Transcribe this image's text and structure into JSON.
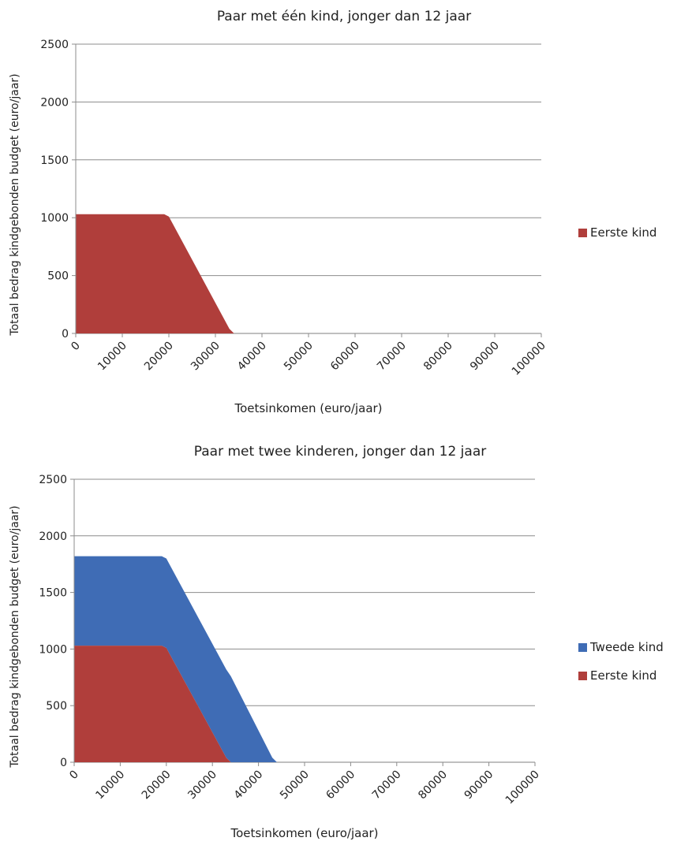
{
  "chart_data": [
    {
      "type": "area",
      "stacked": true,
      "title": "Paar met één kind, jonger dan 12 jaar",
      "xlabel": "Toetsinkomen (euro/jaar)",
      "ylabel": "Totaal bedrag kindgebonden budget (euro/jaar)",
      "xlim": [
        0,
        100000
      ],
      "ylim": [
        0,
        2500
      ],
      "x_ticks": [
        "0",
        "10000",
        "20000",
        "30000",
        "40000",
        "50000",
        "60000",
        "70000",
        "80000",
        "90000",
        "100000"
      ],
      "y_ticks": [
        "0",
        "500",
        "1000",
        "1500",
        "2000",
        "2500"
      ],
      "grid": "horizontal",
      "legend_position": "right",
      "series": [
        {
          "name": "Eerste kind",
          "color": "#b03e3b",
          "points": [
            [
              0,
              1030
            ],
            [
              19000,
              1030
            ],
            [
              20000,
              1010
            ],
            [
              33000,
              40
            ],
            [
              34000,
              0
            ],
            [
              100000,
              0
            ]
          ]
        }
      ]
    },
    {
      "type": "area",
      "stacked": true,
      "title": "Paar met twee kinderen, jonger dan 12 jaar",
      "xlabel": "Toetsinkomen (euro/jaar)",
      "ylabel": "Totaal bedrag kindgebonden budget (euro/jaar)",
      "xlim": [
        0,
        100000
      ],
      "ylim": [
        0,
        2500
      ],
      "x_ticks": [
        "0",
        "10000",
        "20000",
        "30000",
        "40000",
        "50000",
        "60000",
        "70000",
        "80000",
        "90000",
        "100000"
      ],
      "y_ticks": [
        "0",
        "500",
        "1000",
        "1500",
        "2000",
        "2500"
      ],
      "grid": "horizontal",
      "legend_position": "right",
      "series": [
        {
          "name": "Eerste kind",
          "color": "#b03e3b",
          "points": [
            [
              0,
              1030
            ],
            [
              19000,
              1030
            ],
            [
              20000,
              1010
            ],
            [
              33000,
              40
            ],
            [
              34000,
              0
            ],
            [
              100000,
              0
            ]
          ]
        },
        {
          "name": "Tweede kind",
          "color": "#3f6cb5",
          "points": [
            [
              0,
              790
            ],
            [
              19000,
              790
            ],
            [
              20000,
              790
            ],
            [
              33000,
              780
            ],
            [
              34000,
              760
            ],
            [
              43000,
              40
            ],
            [
              44000,
              0
            ],
            [
              100000,
              0
            ]
          ]
        }
      ]
    }
  ]
}
